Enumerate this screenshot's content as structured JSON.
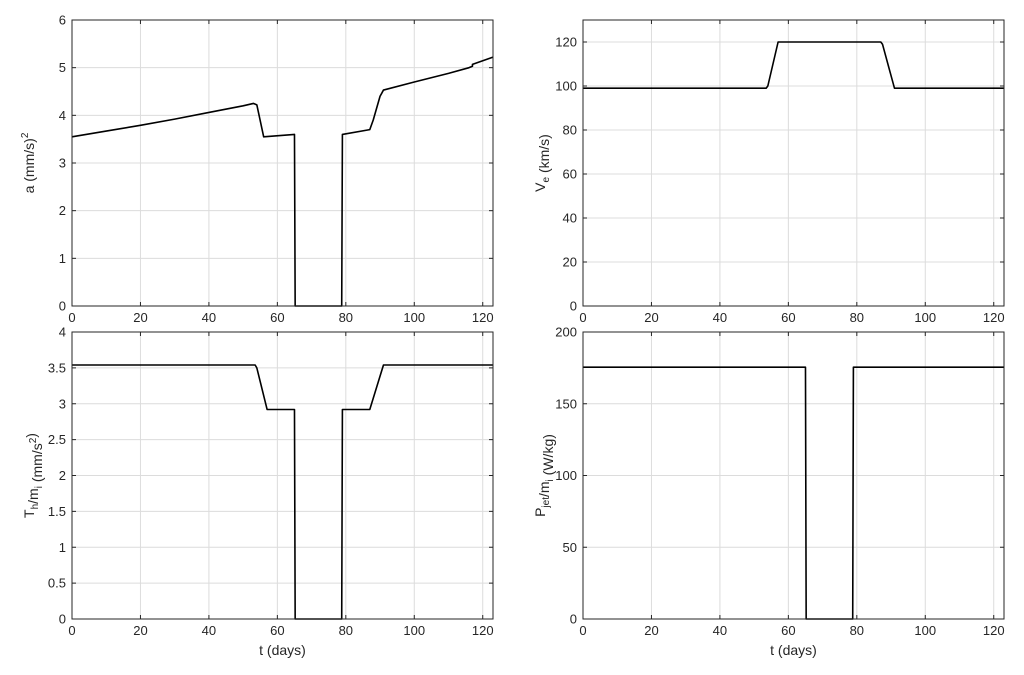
{
  "chart_data": [
    {
      "type": "line",
      "xlabel": "",
      "ylabel": {
        "base": "a (mm/s",
        "sup": "2",
        "tail": ")"
      },
      "xlim": [
        0,
        123
      ],
      "ylim": [
        0,
        6
      ],
      "xticks": [
        0,
        20,
        40,
        60,
        80,
        100,
        120
      ],
      "yticks": [
        0,
        1,
        2,
        3,
        4,
        5,
        6
      ],
      "xtick_labels": [
        "0",
        "20",
        "40",
        "60",
        "80",
        "100",
        "120"
      ],
      "ytick_labels": [
        "0",
        "1",
        "2",
        "3",
        "4",
        "5",
        "6"
      ],
      "grid": true,
      "series_color": "#000000",
      "x": [
        0,
        10,
        20,
        30,
        40,
        50,
        53,
        54,
        56,
        65,
        65.2,
        78.8,
        79,
        87,
        88,
        90,
        91,
        100,
        110,
        116,
        117,
        117,
        123
      ],
      "y": [
        3.55,
        3.67,
        3.79,
        3.92,
        4.06,
        4.2,
        4.25,
        4.22,
        3.55,
        3.6,
        0,
        0,
        3.6,
        3.7,
        3.9,
        4.4,
        4.53,
        4.7,
        4.88,
        5.0,
        5.03,
        5.07,
        5.22
      ]
    },
    {
      "type": "line",
      "xlabel": "",
      "ylabel": {
        "base": "V",
        "sub": "e",
        "tail": " (km/s)"
      },
      "xlim": [
        0,
        123
      ],
      "ylim": [
        0,
        130
      ],
      "xticks": [
        0,
        20,
        40,
        60,
        80,
        100,
        120
      ],
      "yticks": [
        0,
        20,
        40,
        60,
        80,
        100,
        120
      ],
      "xtick_labels": [
        "0",
        "20",
        "40",
        "60",
        "80",
        "100",
        "120"
      ],
      "ytick_labels": [
        "0",
        "20",
        "40",
        "60",
        "80",
        "100",
        "120"
      ],
      "grid": true,
      "series_color": "#000000",
      "x": [
        0,
        53.5,
        54,
        57,
        87,
        87.5,
        91,
        123
      ],
      "y": [
        99,
        99,
        100,
        120,
        120,
        119,
        99,
        99
      ]
    },
    {
      "type": "line",
      "xlabel": "t (days)",
      "ylabel": {
        "base": "T",
        "sub": "h",
        "mid": "/m",
        "sub2": "i",
        "tail": " (mm/s",
        "sup": "2",
        "tail2": ")"
      },
      "xlim": [
        0,
        123
      ],
      "ylim": [
        0,
        4
      ],
      "xticks": [
        0,
        20,
        40,
        60,
        80,
        100,
        120
      ],
      "yticks": [
        0,
        0.5,
        1,
        1.5,
        2,
        2.5,
        3,
        3.5,
        4
      ],
      "xtick_labels": [
        "0",
        "20",
        "40",
        "60",
        "80",
        "100",
        "120"
      ],
      "ytick_labels": [
        "0",
        "0.5",
        "1",
        "1.5",
        "2",
        "2.5",
        "3",
        "3.5",
        "4"
      ],
      "grid": true,
      "series_color": "#000000",
      "x": [
        0,
        53.5,
        54,
        57,
        65,
        65.2,
        78.8,
        79,
        87,
        91,
        123
      ],
      "y": [
        3.54,
        3.54,
        3.5,
        2.92,
        2.92,
        0,
        0,
        2.92,
        2.92,
        3.54,
        3.54
      ]
    },
    {
      "type": "line",
      "xlabel": "t (days)",
      "ylabel": {
        "base": "P",
        "sub": "jet",
        "mid": "/m",
        "sub2": "i",
        "tail": " (W/kg)"
      },
      "xlim": [
        0,
        123
      ],
      "ylim": [
        0,
        200
      ],
      "xticks": [
        0,
        20,
        40,
        60,
        80,
        100,
        120
      ],
      "yticks": [
        0,
        50,
        100,
        150,
        200
      ],
      "xtick_labels": [
        "0",
        "20",
        "40",
        "60",
        "80",
        "100",
        "120"
      ],
      "ytick_labels": [
        "0",
        "50",
        "100",
        "150",
        "200"
      ],
      "grid": true,
      "series_color": "#000000",
      "x": [
        0,
        65,
        65.2,
        78.8,
        79,
        123
      ],
      "y": [
        175.5,
        175.5,
        0,
        0,
        175.5,
        175.5
      ]
    }
  ]
}
